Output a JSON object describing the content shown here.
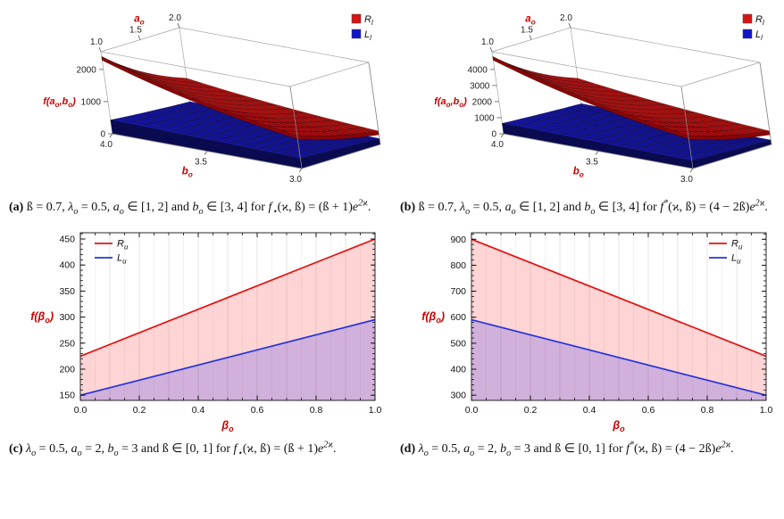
{
  "page": {
    "background": "#ffffff"
  },
  "captions": {
    "a": [
      {
        "k": "b",
        "s": "(a) "
      },
      {
        "s": "ß = 0.7, "
      },
      {
        "k": "i",
        "s": "λ"
      },
      {
        "k": "sub",
        "s": "o"
      },
      {
        "s": " = 0.5, "
      },
      {
        "k": "i",
        "s": "a"
      },
      {
        "k": "sub",
        "s": "o"
      },
      {
        "s": " ∈ [1, 2] and "
      },
      {
        "k": "i",
        "s": "b"
      },
      {
        "k": "sub",
        "s": "o"
      },
      {
        "s": " ∈ [3, 4] for "
      },
      {
        "k": "i",
        "s": "f"
      },
      {
        "k": "sub",
        "s": "⋆"
      },
      {
        "s": "(ϰ, ß) = (ß + 1)"
      },
      {
        "k": "i",
        "s": "e"
      },
      {
        "k": "sup",
        "s": "2ϰ"
      },
      {
        "s": "."
      }
    ],
    "b": [
      {
        "k": "b",
        "s": "(b) "
      },
      {
        "s": "ß = 0.7, "
      },
      {
        "k": "i",
        "s": "λ"
      },
      {
        "k": "sub",
        "s": "o"
      },
      {
        "s": " = 0.5, "
      },
      {
        "k": "i",
        "s": "a"
      },
      {
        "k": "sub",
        "s": "o"
      },
      {
        "s": " ∈ [1, 2] and "
      },
      {
        "k": "i",
        "s": "b"
      },
      {
        "k": "sub",
        "s": "o"
      },
      {
        "s": " ∈ [3, 4] for "
      },
      {
        "k": "i",
        "s": "f"
      },
      {
        "k": "sup",
        "s": "*"
      },
      {
        "s": "(ϰ, ß) = (4 − 2ß)"
      },
      {
        "k": "i",
        "s": "e"
      },
      {
        "k": "sup",
        "s": "2ϰ"
      },
      {
        "s": "."
      }
    ],
    "c": [
      {
        "k": "b",
        "s": "(c) "
      },
      {
        "k": "i",
        "s": "λ"
      },
      {
        "k": "sub",
        "s": "o"
      },
      {
        "s": " = 0.5, "
      },
      {
        "k": "i",
        "s": "a"
      },
      {
        "k": "sub",
        "s": "o"
      },
      {
        "s": " = 2, "
      },
      {
        "k": "i",
        "s": "b"
      },
      {
        "k": "sub",
        "s": "o"
      },
      {
        "s": " = 3 and ß ∈ [0, 1] for "
      },
      {
        "k": "i",
        "s": "f"
      },
      {
        "k": "sub",
        "s": "⋆"
      },
      {
        "s": "(ϰ, ß) = (ß + 1)"
      },
      {
        "k": "i",
        "s": "e"
      },
      {
        "k": "sup",
        "s": "2ϰ"
      },
      {
        "s": "."
      }
    ],
    "d": [
      {
        "k": "b",
        "s": "(d) "
      },
      {
        "k": "i",
        "s": "λ"
      },
      {
        "k": "sub",
        "s": "o"
      },
      {
        "s": " = 0.5, "
      },
      {
        "k": "i",
        "s": "a"
      },
      {
        "k": "sub",
        "s": "o"
      },
      {
        "s": " = 2, "
      },
      {
        "k": "i",
        "s": "b"
      },
      {
        "k": "sub",
        "s": "o"
      },
      {
        "s": " = 3 and ß ∈ [0, 1] for "
      },
      {
        "k": "i",
        "s": "f"
      },
      {
        "k": "sup",
        "s": "*"
      },
      {
        "s": "(ϰ, ß) = (4 − 2ß)"
      },
      {
        "k": "i",
        "s": "e"
      },
      {
        "k": "sup",
        "s": "2ϰ"
      },
      {
        "s": "."
      }
    ]
  },
  "chart_data": [
    {
      "key": "a",
      "type": "surface",
      "x_axis": {
        "label": [
          {
            "s": "a"
          },
          {
            "k": "sub",
            "s": "o"
          }
        ],
        "min": 1,
        "max": 2,
        "ticks": [
          {
            "v": 0,
            "s": "1.0"
          },
          {
            "v": 0.5,
            "s": "1.5"
          },
          {
            "v": 1,
            "s": "2.0"
          }
        ]
      },
      "y_axis": {
        "label": [
          {
            "s": "b"
          },
          {
            "k": "sub",
            "s": "o"
          }
        ],
        "min": 3,
        "max": 4,
        "ticks": [
          {
            "v": 1,
            "s": "4.0"
          },
          {
            "v": 0.5,
            "s": "3.5"
          },
          {
            "v": 0,
            "s": "3.0"
          }
        ]
      },
      "z_axis": {
        "label": [
          {
            "s": "f("
          },
          {
            "s": "a"
          },
          {
            "k": "sub",
            "s": "o"
          },
          {
            "s": ","
          },
          {
            "s": "b"
          },
          {
            "k": "sub",
            "s": "o"
          },
          {
            "s": ")"
          }
        ],
        "ticks": [
          {
            "v": 0,
            "s": "0"
          },
          {
            "v": 1000,
            "s": "1000"
          },
          {
            "v": 2000,
            "s": "2000"
          }
        ],
        "box_max": 2550
      },
      "legend": [
        {
          "label": [
            {
              "s": "R"
            },
            {
              "k": "sub",
              "s": "l"
            }
          ],
          "color": "#d81414"
        },
        {
          "label": [
            {
              "s": "L"
            },
            {
              "k": "sub",
              "s": "l"
            }
          ],
          "color": "#1414c8"
        }
      ],
      "surfaces": [
        {
          "name": "R_l",
          "color": "#e01313",
          "dark": "#8a0505",
          "peak": 2400,
          "decay_a": 0.9,
          "decay_b": 0.85,
          "skirt": "shallow"
        },
        {
          "name": "L_l",
          "color": "#1414a6",
          "dark": "#0a0a50",
          "peak": 430,
          "decay_a": 0.55,
          "decay_b": 0.3,
          "skirt": "floor"
        }
      ]
    },
    {
      "key": "b",
      "type": "surface",
      "x_axis": {
        "label": [
          {
            "s": "a"
          },
          {
            "k": "sub",
            "s": "o"
          }
        ],
        "min": 1,
        "max": 2,
        "ticks": [
          {
            "v": 0,
            "s": "1.0"
          },
          {
            "v": 0.5,
            "s": "1.5"
          },
          {
            "v": 1,
            "s": "2.0"
          }
        ]
      },
      "y_axis": {
        "label": [
          {
            "s": "b"
          },
          {
            "k": "sub",
            "s": "o"
          }
        ],
        "min": 3,
        "max": 4,
        "ticks": [
          {
            "v": 1,
            "s": "4.0"
          },
          {
            "v": 0.5,
            "s": "3.5"
          },
          {
            "v": 0,
            "s": "3.0"
          }
        ]
      },
      "z_axis": {
        "label": [
          {
            "s": "f("
          },
          {
            "s": "a"
          },
          {
            "k": "sub",
            "s": "o"
          },
          {
            "s": ","
          },
          {
            "s": "b"
          },
          {
            "k": "sub",
            "s": "o"
          },
          {
            "s": ")"
          }
        ],
        "ticks": [
          {
            "v": 0,
            "s": "0"
          },
          {
            "v": 1000,
            "s": "1000"
          },
          {
            "v": 2000,
            "s": "2000"
          },
          {
            "v": 3000,
            "s": "3000"
          },
          {
            "v": 4000,
            "s": "4000"
          }
        ],
        "box_max": 5100
      },
      "legend": [
        {
          "label": [
            {
              "s": "R"
            },
            {
              "k": "sub",
              "s": "l"
            }
          ],
          "color": "#d81414"
        },
        {
          "label": [
            {
              "s": "L"
            },
            {
              "k": "sub",
              "s": "l"
            }
          ],
          "color": "#1414c8"
        }
      ],
      "surfaces": [
        {
          "name": "R_l",
          "color": "#e01313",
          "dark": "#8a0505",
          "peak": 4800,
          "decay_a": 0.9,
          "decay_b": 0.85,
          "skirt": "shallow"
        },
        {
          "name": "L_l",
          "color": "#1414a6",
          "dark": "#0a0a50",
          "peak": 650,
          "decay_a": 0.55,
          "decay_b": 0.3,
          "skirt": "floor"
        }
      ]
    },
    {
      "key": "c",
      "type": "line",
      "x_axis": {
        "label": [
          {
            "s": "β"
          },
          {
            "k": "sub",
            "s": "o"
          }
        ],
        "min": 0,
        "max": 1,
        "ticks": [
          {
            "v": 0,
            "s": "0.0"
          },
          {
            "v": 0.2,
            "s": "0.2"
          },
          {
            "v": 0.4,
            "s": "0.4"
          },
          {
            "v": 0.6,
            "s": "0.6"
          },
          {
            "v": 0.8,
            "s": "0.8"
          },
          {
            "v": 1,
            "s": "1.0"
          }
        ],
        "minor_step": 0.05,
        "grid_step": 0.1,
        "grid_minor": 0.05
      },
      "y_axis": {
        "label": [
          {
            "s": "f(β"
          },
          {
            "k": "sub",
            "s": "o"
          },
          {
            "s": ")"
          }
        ],
        "min": 140,
        "max": 462,
        "ticks": [
          {
            "v": 150,
            "s": "150"
          },
          {
            "v": 200,
            "s": "200"
          },
          {
            "v": 250,
            "s": "250"
          },
          {
            "v": 300,
            "s": "300"
          },
          {
            "v": 350,
            "s": "350"
          },
          {
            "v": 400,
            "s": "400"
          },
          {
            "v": 450,
            "s": "450"
          }
        ],
        "minor_step": 10
      },
      "series": [
        {
          "name": "R_u",
          "label": [
            {
              "s": "R"
            },
            {
              "k": "sub",
              "s": "u"
            }
          ],
          "color": "#e41010",
          "fill": "rgba(255,40,40,0.20)",
          "points": [
            [
              0,
              225
            ],
            [
              1,
              450
            ]
          ]
        },
        {
          "name": "L_u",
          "label": [
            {
              "s": "L"
            },
            {
              "k": "sub",
              "s": "u"
            }
          ],
          "color": "#2433dd",
          "fill": "rgba(70,70,240,0.25)",
          "points": [
            [
              0,
              150
            ],
            [
              1,
              295
            ]
          ]
        }
      ],
      "legend_pos": "top-left"
    },
    {
      "key": "d",
      "type": "line",
      "x_axis": {
        "label": [
          {
            "s": "β"
          },
          {
            "k": "sub",
            "s": "o"
          }
        ],
        "min": 0,
        "max": 1,
        "ticks": [
          {
            "v": 0,
            "s": "0.0"
          },
          {
            "v": 0.2,
            "s": "0.2"
          },
          {
            "v": 0.4,
            "s": "0.4"
          },
          {
            "v": 0.6,
            "s": "0.6"
          },
          {
            "v": 0.8,
            "s": "0.8"
          },
          {
            "v": 1,
            "s": "1.0"
          }
        ],
        "minor_step": 0.05,
        "grid_step": 0.1,
        "grid_minor": 0.05
      },
      "y_axis": {
        "label": [
          {
            "s": "f(β"
          },
          {
            "k": "sub",
            "s": "o"
          },
          {
            "s": ")"
          }
        ],
        "min": 280,
        "max": 925,
        "ticks": [
          {
            "v": 300,
            "s": "300"
          },
          {
            "v": 400,
            "s": "400"
          },
          {
            "v": 500,
            "s": "500"
          },
          {
            "v": 600,
            "s": "600"
          },
          {
            "v": 700,
            "s": "700"
          },
          {
            "v": 800,
            "s": "800"
          },
          {
            "v": 900,
            "s": "900"
          }
        ],
        "minor_step": 20
      },
      "series": [
        {
          "name": "R_u",
          "label": [
            {
              "s": "R"
            },
            {
              "k": "sub",
              "s": "u"
            }
          ],
          "color": "#e41010",
          "fill": "rgba(255,40,40,0.20)",
          "points": [
            [
              0,
              900
            ],
            [
              1,
              450
            ]
          ]
        },
        {
          "name": "L_u",
          "label": [
            {
              "s": "L"
            },
            {
              "k": "sub",
              "s": "u"
            }
          ],
          "color": "#2433dd",
          "fill": "rgba(70,70,240,0.25)",
          "points": [
            [
              0,
              590
            ],
            [
              1,
              300
            ]
          ]
        }
      ],
      "legend_pos": "top-right"
    }
  ]
}
